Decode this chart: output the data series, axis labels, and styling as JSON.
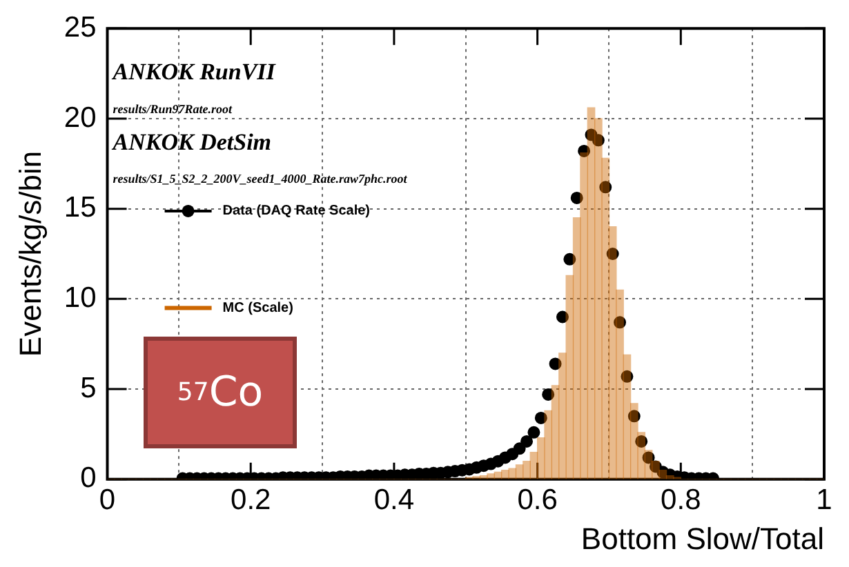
{
  "chart_data": {
    "type": "scatter",
    "xlabel": "Bottom Slow/Total",
    "ylabel": "Events/kg/s/bin",
    "xlim": [
      0,
      1
    ],
    "ylim": [
      0,
      25
    ],
    "xticks": [
      0,
      0.2,
      0.4,
      0.6,
      0.8,
      1
    ],
    "yticks": [
      0,
      5,
      10,
      15,
      20,
      25
    ],
    "grid": true,
    "legend": "left",
    "annotations": [
      "ANKOK RunVII",
      "results/Run97Rate.root",
      "ANKOK DetSim",
      "results/S1_5_S2_2_200V_seed1_4000_Rate.raw7phc.root",
      "$^{57}$Co"
    ],
    "series": [
      {
        "name": "Data (DAQ Rate Scale)",
        "color": "#000000",
        "marker": "circle",
        "x": [
          0.105,
          0.115,
          0.125,
          0.135,
          0.145,
          0.155,
          0.165,
          0.175,
          0.185,
          0.195,
          0.205,
          0.215,
          0.225,
          0.235,
          0.245,
          0.255,
          0.265,
          0.275,
          0.285,
          0.295,
          0.305,
          0.315,
          0.325,
          0.335,
          0.345,
          0.355,
          0.365,
          0.375,
          0.385,
          0.395,
          0.405,
          0.415,
          0.425,
          0.435,
          0.445,
          0.455,
          0.465,
          0.475,
          0.485,
          0.495,
          0.505,
          0.515,
          0.525,
          0.535,
          0.545,
          0.555,
          0.565,
          0.575,
          0.585,
          0.595,
          0.605,
          0.615,
          0.625,
          0.635,
          0.645,
          0.655,
          0.665,
          0.675,
          0.685,
          0.695,
          0.705,
          0.715,
          0.725,
          0.735,
          0.745,
          0.755,
          0.765,
          0.775,
          0.785,
          0.795,
          0.805,
          0.815,
          0.825,
          0.835,
          0.845
        ],
        "values": [
          0.05,
          0.05,
          0.05,
          0.05,
          0.05,
          0.05,
          0.05,
          0.05,
          0.05,
          0.05,
          0.05,
          0.05,
          0.05,
          0.05,
          0.1,
          0.1,
          0.1,
          0.1,
          0.1,
          0.1,
          0.1,
          0.1,
          0.15,
          0.15,
          0.15,
          0.15,
          0.2,
          0.2,
          0.2,
          0.2,
          0.2,
          0.25,
          0.25,
          0.3,
          0.3,
          0.35,
          0.35,
          0.4,
          0.45,
          0.5,
          0.55,
          0.65,
          0.75,
          0.85,
          1.0,
          1.2,
          1.4,
          1.7,
          2.1,
          2.6,
          3.4,
          4.7,
          6.4,
          9.0,
          12.2,
          15.6,
          18.2,
          19.1,
          18.8,
          16.2,
          12.5,
          8.7,
          5.7,
          3.5,
          2.1,
          1.2,
          0.7,
          0.4,
          0.25,
          0.15,
          0.1,
          0.05,
          0.05,
          0.05,
          0.05
        ]
      },
      {
        "name": "MC (Scale)",
        "type": "histogram",
        "color": "#cc6600",
        "bins": [
          0,
          0.01,
          0.02,
          0.03,
          0.04,
          0.05,
          0.06,
          0.07,
          0.08,
          0.09,
          0.1,
          0.11,
          0.12,
          0.13,
          0.14,
          0.15,
          0.16,
          0.17,
          0.18,
          0.19,
          0.2,
          0.21,
          0.22,
          0.23,
          0.24,
          0.25,
          0.26,
          0.27,
          0.28,
          0.29,
          0.3,
          0.31,
          0.32,
          0.33,
          0.34,
          0.35,
          0.36,
          0.37,
          0.38,
          0.39,
          0.4,
          0.41,
          0.42,
          0.43,
          0.44,
          0.45,
          0.46,
          0.47,
          0.48,
          0.49,
          0.5,
          0.51,
          0.52,
          0.53,
          0.54,
          0.55,
          0.56,
          0.57,
          0.58,
          0.59,
          0.6,
          0.61,
          0.62,
          0.63,
          0.64,
          0.65,
          0.66,
          0.67,
          0.68,
          0.69,
          0.7,
          0.71,
          0.72,
          0.73,
          0.74,
          0.75,
          0.76,
          0.77,
          0.78,
          0.79,
          0.8,
          0.81,
          0.82,
          0.83,
          0.84,
          0.85,
          0.86,
          0.87,
          0.88,
          0.89,
          0.9,
          0.91,
          0.92,
          0.93,
          0.94,
          0.95,
          0.96,
          0.97,
          0.98,
          0.99,
          1
        ],
        "values": [
          0,
          0,
          0,
          0,
          0,
          0,
          0,
          0,
          0,
          0,
          0,
          0,
          0,
          0,
          0,
          0,
          0,
          0,
          0,
          0,
          0,
          0,
          0,
          0,
          0,
          0,
          0,
          0,
          0,
          0,
          0,
          0,
          0,
          0,
          0,
          0,
          0,
          0,
          0,
          0,
          0,
          0,
          0,
          0,
          0,
          0,
          0,
          0,
          0,
          0,
          0.1,
          0.15,
          0.2,
          0.3,
          0.4,
          0.5,
          0.6,
          0.8,
          1.0,
          1.5,
          2.3,
          3.8,
          5.2,
          7.0,
          11.3,
          14.5,
          18.1,
          20.6,
          20.0,
          17.8,
          14.0,
          10.5,
          6.9,
          4.2,
          2.6,
          1.6,
          1.0,
          0.5,
          0.2,
          0.1,
          0,
          0,
          0,
          0,
          0,
          0,
          0,
          0,
          0,
          0,
          0,
          0,
          0,
          0,
          0,
          0,
          0,
          0,
          0,
          0
        ]
      }
    ]
  }
}
